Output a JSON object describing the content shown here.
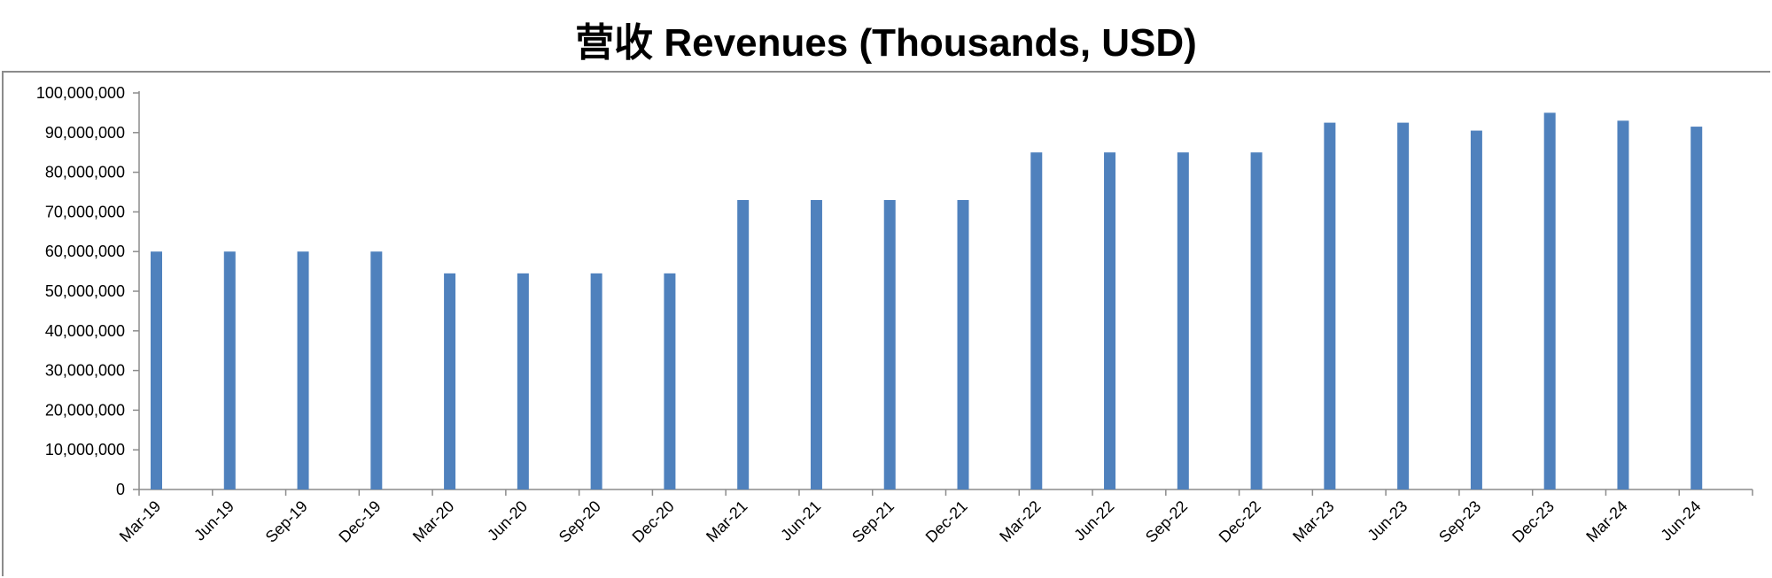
{
  "chart_data": {
    "type": "bar",
    "title": "营收 Revenues (Thousands, USD)",
    "xlabel": "",
    "ylabel": "",
    "ylim": [
      0,
      100000000
    ],
    "yticks": [
      "0",
      "10,000,000",
      "20,000,000",
      "30,000,000",
      "40,000,000",
      "50,000,000",
      "60,000,000",
      "70,000,000",
      "80,000,000",
      "90,000,000",
      "100,000,000"
    ],
    "categories": [
      "Mar-19",
      "Jun-19",
      "Sep-19",
      "Dec-19",
      "Mar-20",
      "Jun-20",
      "Sep-20",
      "Dec-20",
      "Mar-21",
      "Jun-21",
      "Sep-21",
      "Dec-21",
      "Mar-22",
      "Jun-22",
      "Sep-22",
      "Dec-22",
      "Mar-23",
      "Jun-23",
      "Sep-23",
      "Dec-23",
      "Mar-24",
      "Jun-24"
    ],
    "values": [
      60000000,
      60000000,
      60000000,
      60000000,
      54500000,
      54500000,
      54500000,
      54500000,
      73000000,
      73000000,
      73000000,
      73000000,
      85000000,
      85000000,
      85000000,
      85000000,
      92500000,
      92500000,
      90500000,
      95000000,
      93000000,
      91500000
    ],
    "bar_color": "#4f81bd",
    "grid": false,
    "legend": "none"
  }
}
